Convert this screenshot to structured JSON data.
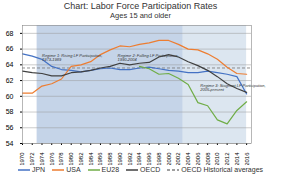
{
  "chart_data": {
    "type": "line",
    "title": "Chart: Labor Force Participation Rates",
    "subtitle": "Ages 15 and older",
    "x": [
      1970,
      1972,
      1974,
      1976,
      1978,
      1980,
      1982,
      1984,
      1986,
      1988,
      1990,
      1992,
      1994,
      1996,
      1998,
      2000,
      2002,
      2004,
      2006,
      2008,
      2010,
      2012,
      2014,
      2016
    ],
    "series": [
      {
        "name": "JPN",
        "color": "#4472C4",
        "values": [
          65.4,
          65.1,
          64.7,
          63.8,
          63.4,
          63.3,
          63.1,
          63.3,
          63.5,
          63.6,
          63.4,
          63.4,
          63.6,
          63.7,
          63.5,
          63.3,
          63.2,
          63.0,
          63.0,
          63.2,
          63.0,
          62.8,
          62.5,
          60.3
        ]
      },
      {
        "name": "USA",
        "color": "#ED7D31",
        "values": [
          60.4,
          60.4,
          61.3,
          61.6,
          62.2,
          63.8,
          64.0,
          64.4,
          65.3,
          65.9,
          66.4,
          66.3,
          66.6,
          66.8,
          67.1,
          67.1,
          66.6,
          66.0,
          65.9,
          65.4,
          64.7,
          63.7,
          62.9,
          62.8
        ]
      },
      {
        "name": "EU28",
        "color": "#70AD47",
        "values": [
          null,
          null,
          null,
          null,
          null,
          null,
          null,
          null,
          null,
          null,
          null,
          null,
          63.8,
          63.5,
          62.8,
          62.9,
          62.3,
          61.5,
          59.2,
          58.8,
          57.0,
          56.5,
          58.2,
          59.3
        ]
      },
      {
        "name": "OECD",
        "color": "#404040",
        "values": [
          63.2,
          63.0,
          62.9,
          62.6,
          62.6,
          63.0,
          63.1,
          63.3,
          63.6,
          63.8,
          64.2,
          64.0,
          64.2,
          64.3,
          65.0,
          65.3,
          65.0,
          64.4,
          63.9,
          63.3,
          62.5,
          61.6,
          61.0,
          60.5
        ]
      }
    ],
    "reference_lines": [
      {
        "name": "OECD Historical averages",
        "y": 63.6,
        "color": "#808080",
        "line_style": "dashed"
      }
    ],
    "shaded_regions": [
      {
        "start": 1973,
        "end": 2003,
        "color": "#c5d4e8"
      },
      {
        "start": 2003,
        "end": 2016,
        "color": "#dce6f0"
      }
    ],
    "annotations": [
      {
        "text": "Regime 1: Rising LF Participation,\n1973-1989",
        "x": 1974,
        "y": 65.3
      },
      {
        "text": "Regime 2: Falling LF Participation,\n1990-2004",
        "x": 1989.5,
        "y": 65.3
      },
      {
        "text": "Regime 3: Stagnant LF Participation,\n2005-present",
        "x": 2006.5,
        "y": 61.5
      }
    ],
    "xlim": [
      1970,
      2017
    ],
    "xticks": [
      1970,
      1972,
      1974,
      1976,
      1978,
      1980,
      1982,
      1984,
      1986,
      1988,
      1990,
      1992,
      1994,
      1996,
      1998,
      2000,
      2002,
      2004,
      2006,
      2008,
      2010,
      2012,
      2014,
      2016
    ],
    "ylim": [
      54,
      69
    ],
    "yticks": [
      54,
      56,
      58,
      60,
      62,
      64,
      66,
      68
    ],
    "grid": true,
    "legend": "bottom"
  }
}
